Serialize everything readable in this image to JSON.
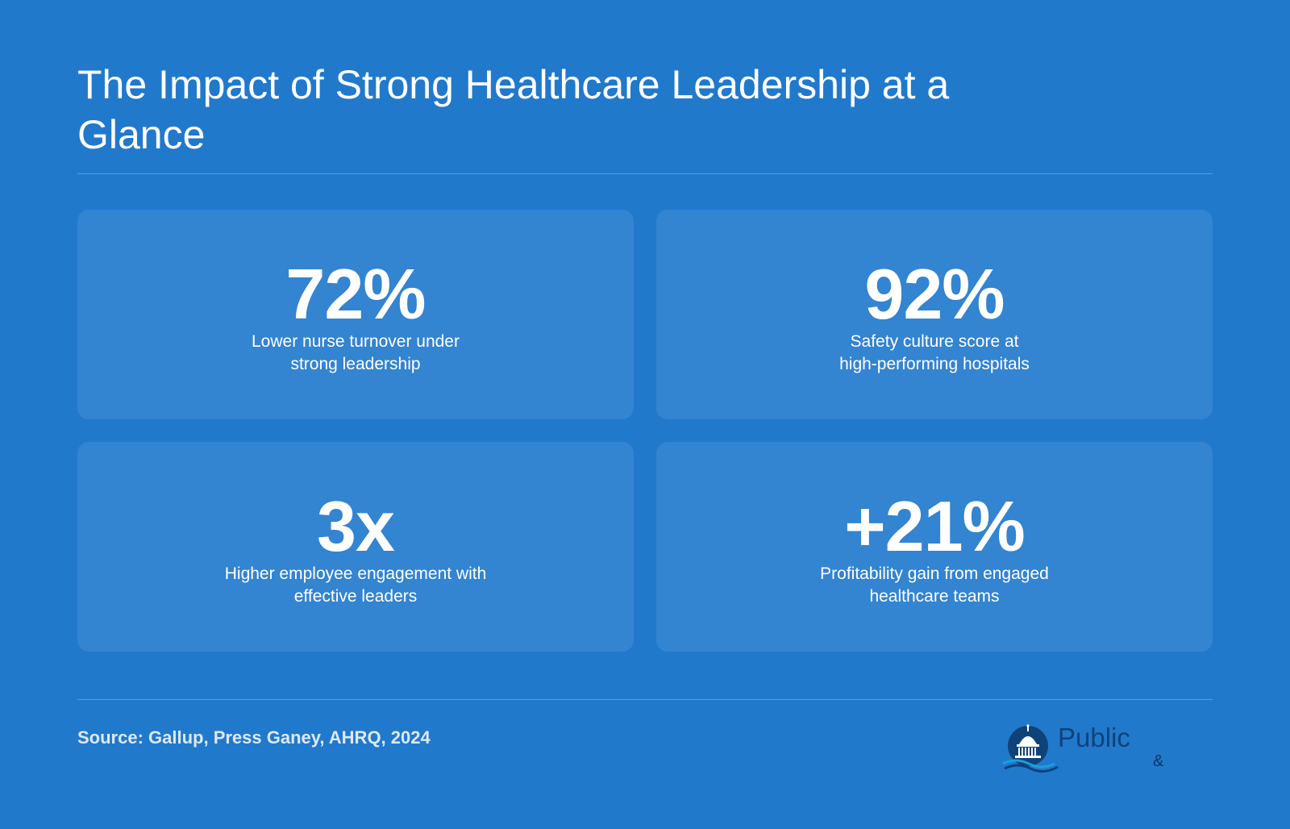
{
  "header": {
    "title": "The Impact of Strong Healthcare Leadership at a Glance"
  },
  "stats": [
    {
      "value": "72%",
      "description": "Lower nurse turnover under\nstrong leadership"
    },
    {
      "value": "92%",
      "description": "Safety culture score at\nhigh-performing hospitals"
    },
    {
      "value": "3x",
      "description": "Higher employee engagement with\neffective leaders"
    },
    {
      "value": "+21%",
      "description": "Profitability gain from engaged\nhealthcare teams"
    }
  ],
  "footer": {
    "source": "Source: Gallup, Press Ganey, AHRQ, 2024",
    "logo_word": "Public",
    "logo_amp": "&"
  },
  "colors": {
    "background": "#2179cc",
    "card": "#3384d1",
    "logo_navy": "#10427a"
  },
  "icons": {
    "logo_mark": "capitol-dome-icon"
  }
}
